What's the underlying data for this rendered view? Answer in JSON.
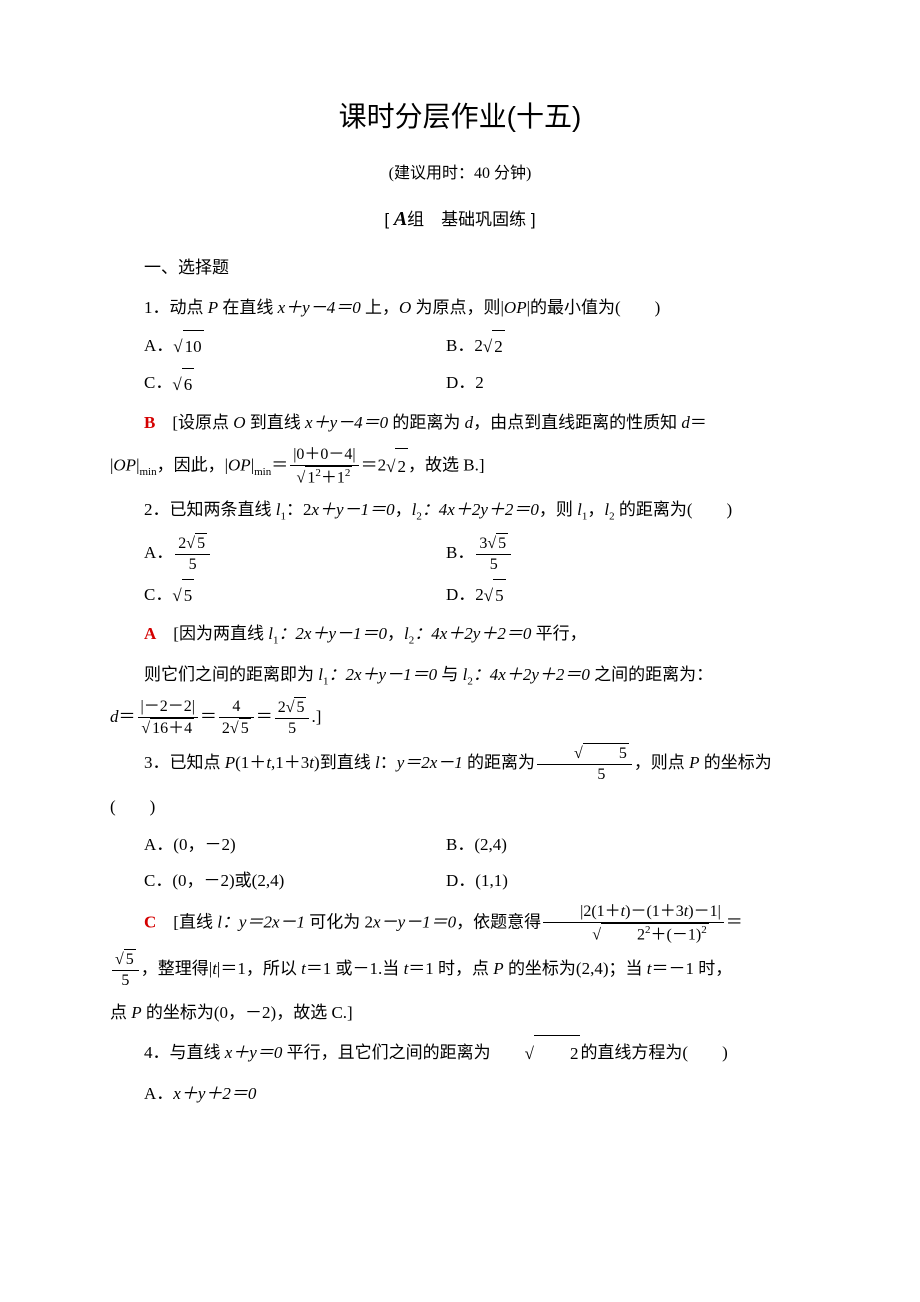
{
  "title": "课时分层作业(十五)",
  "subtitle": "(建议用时：40 分钟)",
  "section_header_prefix": "[ ",
  "section_header_bold": "A",
  "section_header_text": "组　基础巩固练 ]",
  "category_heading": "一、选择题",
  "q1": {
    "stem_pre": "1．动点 ",
    "stem_mid1": " 在直线 ",
    "stem_eq": "x＋y－4＝0",
    "stem_mid2": " 上，",
    "stem_mid3": " 为原点，则|",
    "stem_mid4": "|的最小值为(　　)",
    "optA": "A．",
    "optA_rad": "10",
    "optB": "B．2",
    "optB_rad": "2",
    "optC": "C．",
    "optC_rad": "6",
    "optD": "D．2",
    "answer": "B",
    "sol1_pre": "　[设原点 ",
    "sol1_mid1": " 到直线 ",
    "sol1_eq": "x＋y－4＝0",
    "sol1_mid2": " 的距离为 ",
    "sol1_mid3": "，由点到直线距离的性质知 ",
    "sol1_mid4": "＝",
    "sol2_pre": "|",
    "sol2_sub": "min",
    "sol2_mid": "，因此，|",
    "sol2_eq": "＝",
    "sol2_frac_num": "|0＋0－4|",
    "sol2_frac_den_pre": "1",
    "sol2_end": "＝2",
    "sol2_rad": "2",
    "sol2_final": "，故选 B.]"
  },
  "q2": {
    "stem_pre": "2．已知两条直线 ",
    "stem_l1": "：2",
    "stem_eq1": "x＋y－1＝0",
    "stem_l2": "，",
    "stem_eq2": "：4x＋2y＋2＝0",
    "stem_end": "，则 ",
    "stem_end2": "，",
    "stem_end3": " 的距离为(　　)",
    "optA": "A．",
    "optA_num": "2",
    "optA_rad": "5",
    "optA_den": "5",
    "optB": "B．",
    "optB_num": "3",
    "optB_rad": "5",
    "optB_den": "5",
    "optC": "C．",
    "optC_rad": "5",
    "optD": "D．2",
    "optD_rad": "5",
    "answer": "A",
    "sol1": "　[因为两直线 ",
    "sol1_eq1": "：2x＋y－1＝0",
    "sol1_mid": "，",
    "sol1_eq2": "：4x＋2y＋2＝0",
    "sol1_end": " 平行，",
    "sol2": "则它们之间的距离即为 ",
    "sol2_eq1": "：2x＋y－1＝0",
    "sol2_mid": " 与 ",
    "sol2_eq2": "：4x＋2y＋2＝0",
    "sol2_end": " 之间的距离为：",
    "sol3_d": "d",
    "sol3_eq": "＝",
    "sol3_num1": "|－2－2|",
    "sol3_den1": "16＋4",
    "sol3_num2": "4",
    "sol3_den2_pre": "2",
    "sol3_den2_rad": "5",
    "sol3_num3": "2",
    "sol3_rad3": "5",
    "sol3_den3": "5",
    "sol3_end": ".]"
  },
  "q3": {
    "stem_pre": "3．已知点 ",
    "stem_pt": "(1＋",
    "stem_t": "t",
    "stem_pt2": ",1＋3",
    "stem_pt3": ")到直线 ",
    "stem_l": "：",
    "stem_eq": "y＝2x－1",
    "stem_mid": " 的距离为",
    "stem_rad": "5",
    "stem_den": "5",
    "stem_end": "，则点 ",
    "stem_end2": " 的坐标为",
    "paren": "(　　)",
    "optA": "A．(0，－2)",
    "optB": "B．(2,4)",
    "optC": "C．(0，－2)或(2,4)",
    "optD": "D．(1,1)",
    "answer": "C",
    "sol1_pre": "　[直线 ",
    "sol1_eq1": "：y＝2x－1",
    "sol1_mid": " 可化为 2",
    "sol1_eq2": "x－y－1＝0",
    "sol1_mid2": "，依题意得",
    "sol1_num": "|2(1＋",
    "sol1_num2": ")－(1＋3",
    "sol1_num3": ")－1|",
    "sol1_den_pre": "2",
    "sol1_den_mid": "＋(－1)",
    "sol1_eq": "＝",
    "sol2_rad": "5",
    "sol2_den": "5",
    "sol2_mid": "，整理得|",
    "sol2_t": "t",
    "sol2_mid2": "|＝1，所以 ",
    "sol2_mid3": "＝1 或－1.当 ",
    "sol2_mid4": "＝1 时，点 ",
    "sol2_mid5": " 的坐标为(2,4)；当 ",
    "sol2_mid6": "＝－1 时，",
    "sol3": "点 ",
    "sol3_mid": " 的坐标为(0，－2)，故选 C.]"
  },
  "q4": {
    "stem_pre": "4．与直线 ",
    "stem_eq": "x＋y＝0",
    "stem_mid": " 平行，且它们之间的距离为",
    "stem_rad": "2",
    "stem_end": "的直线方程为(　　)",
    "optA": "A．",
    "optA_eq": "x＋y＋2＝0"
  },
  "italic": {
    "P": "P",
    "O": "O",
    "OP": "OP",
    "d": "d",
    "l": "l",
    "x": "x",
    "y": "y",
    "t": "t"
  }
}
